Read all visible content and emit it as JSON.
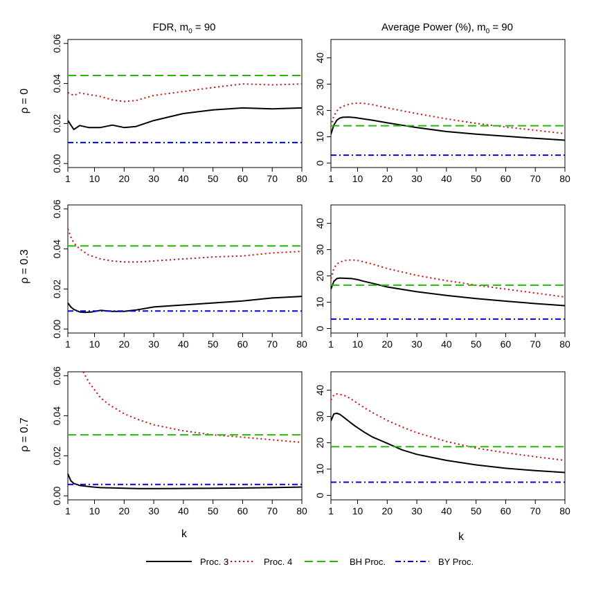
{
  "column_titles": {
    "fdr_prefix": "FDR, m",
    "fdr_sub": "0",
    "fdr_suffix": " = 90",
    "power_prefix": "Average Power (%), m",
    "power_sub": "0",
    "power_suffix": " = 90"
  },
  "row_labels": [
    {
      "greek": "ρ",
      "rest": " = 0"
    },
    {
      "greek": "ρ",
      "rest": " = 0.3"
    },
    {
      "greek": "ρ",
      "rest": " = 0.7"
    }
  ],
  "xlabel": "k",
  "legend": {
    "items": [
      {
        "label": "Proc. 3",
        "color": "#000000",
        "dash": "solid"
      },
      {
        "label": "Proc. 4",
        "color": "#e60000",
        "dash": "dotted"
      },
      {
        "label": "BH Proc.",
        "color": "#22bb00",
        "dash": "dashed"
      },
      {
        "label": "BY Proc.",
        "color": "#0000dd",
        "dash": "dotdash"
      }
    ]
  },
  "chart_data": [
    {
      "type": "line",
      "panel": "fdr-rho-0",
      "row": 0,
      "col": 0,
      "x_ticks": [
        1,
        10,
        20,
        30,
        40,
        50,
        60,
        70,
        80
      ],
      "y_ticks": [
        "0.00",
        "0.02",
        "0.04",
        "0.06"
      ],
      "xlim": [
        1,
        80
      ],
      "ylim": [
        -0.002,
        0.062
      ],
      "series": [
        {
          "name": "Proc. 3",
          "x": [
            1,
            3,
            5,
            8,
            12,
            16,
            20,
            24,
            30,
            40,
            50,
            60,
            70,
            80
          ],
          "y": [
            0.0215,
            0.017,
            0.019,
            0.018,
            0.018,
            0.0192,
            0.018,
            0.0185,
            0.0215,
            0.025,
            0.0268,
            0.0278,
            0.0273,
            0.0278
          ]
        },
        {
          "name": "Proc. 4",
          "x": [
            1,
            3,
            5,
            8,
            12,
            16,
            20,
            24,
            30,
            40,
            50,
            60,
            70,
            80
          ],
          "y": [
            0.0355,
            0.034,
            0.0353,
            0.0345,
            0.0335,
            0.0318,
            0.031,
            0.0315,
            0.034,
            0.036,
            0.038,
            0.0398,
            0.0393,
            0.0398
          ]
        },
        {
          "name": "BH Proc.",
          "x": [
            1,
            80
          ],
          "y": [
            0.044,
            0.044
          ]
        },
        {
          "name": "BY Proc.",
          "x": [
            1,
            80
          ],
          "y": [
            0.0105,
            0.0105
          ]
        }
      ]
    },
    {
      "type": "line",
      "panel": "power-rho-0",
      "row": 0,
      "col": 1,
      "x_ticks": [
        1,
        10,
        20,
        30,
        40,
        50,
        60,
        70,
        80
      ],
      "y_ticks": [
        "0",
        "10",
        "20",
        "30",
        "40"
      ],
      "xlim": [
        1,
        80
      ],
      "ylim": [
        -1.7,
        47
      ],
      "series": [
        {
          "name": "Proc. 3",
          "x": [
            1,
            2,
            3,
            4,
            5,
            7,
            9,
            12,
            15,
            20,
            30,
            40,
            50,
            60,
            70,
            80
          ],
          "y": [
            11,
            14.5,
            16.3,
            17.1,
            17.4,
            17.5,
            17.3,
            16.8,
            16.3,
            15.3,
            13.5,
            12,
            11,
            10.2,
            9.4,
            8.7
          ]
        },
        {
          "name": "Proc. 4",
          "x": [
            1,
            2,
            3,
            4,
            6,
            8,
            10,
            12,
            15,
            20,
            30,
            40,
            50,
            60,
            70,
            80
          ],
          "y": [
            14,
            18,
            19.8,
            21,
            22,
            22.6,
            22.8,
            22.7,
            22.2,
            21,
            18.8,
            16.8,
            15.1,
            13.7,
            12.5,
            11.2
          ]
        },
        {
          "name": "BH Proc.",
          "x": [
            1,
            80
          ],
          "y": [
            14.2,
            14.2
          ]
        },
        {
          "name": "BY Proc.",
          "x": [
            1,
            80
          ],
          "y": [
            3,
            3
          ]
        }
      ]
    },
    {
      "type": "line",
      "panel": "fdr-rho-0.3",
      "row": 1,
      "col": 0,
      "x_ticks": [
        1,
        10,
        20,
        30,
        40,
        50,
        60,
        70,
        80
      ],
      "y_ticks": [
        "0.00",
        "0.02",
        "0.04",
        "0.06"
      ],
      "xlim": [
        1,
        80
      ],
      "ylim": [
        -0.002,
        0.062
      ],
      "series": [
        {
          "name": "Proc. 3",
          "x": [
            1,
            2,
            3,
            5,
            7,
            9,
            12,
            16,
            20,
            24,
            30,
            40,
            50,
            60,
            70,
            80
          ],
          "y": [
            0.013,
            0.011,
            0.0098,
            0.0085,
            0.0083,
            0.0085,
            0.0093,
            0.0088,
            0.0088,
            0.0095,
            0.011,
            0.012,
            0.013,
            0.014,
            0.0155,
            0.0163
          ]
        },
        {
          "name": "Proc. 4",
          "x": [
            1,
            2,
            3,
            5,
            8,
            12,
            16,
            20,
            25,
            30,
            40,
            50,
            60,
            70,
            80
          ],
          "y": [
            0.05,
            0.046,
            0.043,
            0.04,
            0.037,
            0.035,
            0.034,
            0.0335,
            0.0335,
            0.034,
            0.035,
            0.036,
            0.0365,
            0.038,
            0.0388
          ]
        },
        {
          "name": "BH Proc.",
          "x": [
            1,
            80
          ],
          "y": [
            0.0415,
            0.0415
          ]
        },
        {
          "name": "BY Proc.",
          "x": [
            1,
            80
          ],
          "y": [
            0.009,
            0.009
          ]
        }
      ]
    },
    {
      "type": "line",
      "panel": "power-rho-0.3",
      "row": 1,
      "col": 1,
      "x_ticks": [
        1,
        10,
        20,
        30,
        40,
        50,
        60,
        70,
        80
      ],
      "y_ticks": [
        "0",
        "10",
        "20",
        "30",
        "40"
      ],
      "xlim": [
        1,
        80
      ],
      "ylim": [
        -1.7,
        47
      ],
      "series": [
        {
          "name": "Proc. 3",
          "x": [
            1,
            2,
            3,
            4,
            6,
            8,
            10,
            12,
            15,
            20,
            30,
            40,
            50,
            60,
            70,
            80
          ],
          "y": [
            15,
            18,
            19,
            19.2,
            19.1,
            19,
            18.6,
            18,
            17.2,
            15.8,
            14,
            12.6,
            11.4,
            10.4,
            9.5,
            8.7
          ]
        },
        {
          "name": "Proc. 4",
          "x": [
            1,
            2,
            3,
            4,
            6,
            8,
            10,
            12,
            15,
            20,
            30,
            40,
            50,
            60,
            70,
            80
          ],
          "y": [
            19,
            23,
            24.5,
            25.3,
            25.9,
            26.1,
            25.9,
            25.4,
            24.5,
            22.8,
            20.2,
            18.2,
            16.5,
            15,
            13.5,
            12
          ]
        },
        {
          "name": "BH Proc.",
          "x": [
            1,
            80
          ],
          "y": [
            16.5,
            16.5
          ]
        },
        {
          "name": "BY Proc.",
          "x": [
            1,
            80
          ],
          "y": [
            3.6,
            3.6
          ]
        }
      ]
    },
    {
      "type": "line",
      "panel": "fdr-rho-0.7",
      "row": 2,
      "col": 0,
      "x_ticks": [
        1,
        10,
        20,
        30,
        40,
        50,
        60,
        70,
        80
      ],
      "y_ticks": [
        "0.00",
        "0.02",
        "0.04",
        "0.06"
      ],
      "xlim": [
        1,
        80
      ],
      "ylim": [
        -0.002,
        0.062
      ],
      "series": [
        {
          "name": "Proc. 3",
          "x": [
            1,
            2,
            3,
            5,
            7,
            9,
            12,
            16,
            20,
            25,
            30,
            40,
            50,
            60,
            70,
            80
          ],
          "y": [
            0.011,
            0.0075,
            0.0062,
            0.0052,
            0.0048,
            0.0045,
            0.0041,
            0.004,
            0.0038,
            0.0036,
            0.0036,
            0.0037,
            0.0038,
            0.0039,
            0.0041,
            0.0044
          ]
        },
        {
          "name": "Proc. 4",
          "x": [
            6.2,
            8,
            10,
            12,
            15,
            20,
            25,
            30,
            40,
            50,
            60,
            70,
            80
          ],
          "y": [
            0.062,
            0.057,
            0.053,
            0.049,
            0.0455,
            0.041,
            0.038,
            0.0355,
            0.0325,
            0.0305,
            0.0293,
            0.028,
            0.0267
          ]
        },
        {
          "name": "BH Proc.",
          "x": [
            1,
            80
          ],
          "y": [
            0.0305,
            0.0305
          ]
        },
        {
          "name": "BY Proc.",
          "x": [
            1,
            80
          ],
          "y": [
            0.0057,
            0.0057
          ]
        }
      ]
    },
    {
      "type": "line",
      "panel": "power-rho-0.7",
      "row": 2,
      "col": 1,
      "x_ticks": [
        1,
        10,
        20,
        30,
        40,
        50,
        60,
        70,
        80
      ],
      "y_ticks": [
        "0",
        "10",
        "20",
        "30",
        "40"
      ],
      "xlim": [
        1,
        80
      ],
      "ylim": [
        -1.7,
        47
      ],
      "series": [
        {
          "name": "Proc. 3",
          "x": [
            1,
            2,
            3,
            4,
            5,
            7,
            9,
            12,
            15,
            20,
            25,
            30,
            40,
            50,
            60,
            70,
            80
          ],
          "y": [
            28.3,
            31,
            31.2,
            30.8,
            30,
            28.2,
            26.5,
            24.2,
            22.2,
            19.8,
            17.3,
            15.6,
            13.3,
            11.6,
            10.3,
            9.4,
            8.7
          ]
        },
        {
          "name": "Proc. 4",
          "x": [
            1,
            2,
            3,
            4,
            6,
            8,
            10,
            12,
            15,
            20,
            25,
            30,
            40,
            50,
            60,
            70,
            80
          ],
          "y": [
            36.3,
            38.2,
            38.6,
            38.4,
            37.8,
            36.5,
            35,
            33.5,
            31.5,
            28.5,
            26,
            23.8,
            20.5,
            18,
            16.2,
            14.7,
            13.3
          ]
        },
        {
          "name": "BH Proc.",
          "x": [
            1,
            80
          ],
          "y": [
            18.5,
            18.5
          ]
        },
        {
          "name": "BY Proc.",
          "x": [
            1,
            80
          ],
          "y": [
            5,
            5
          ]
        }
      ]
    }
  ]
}
